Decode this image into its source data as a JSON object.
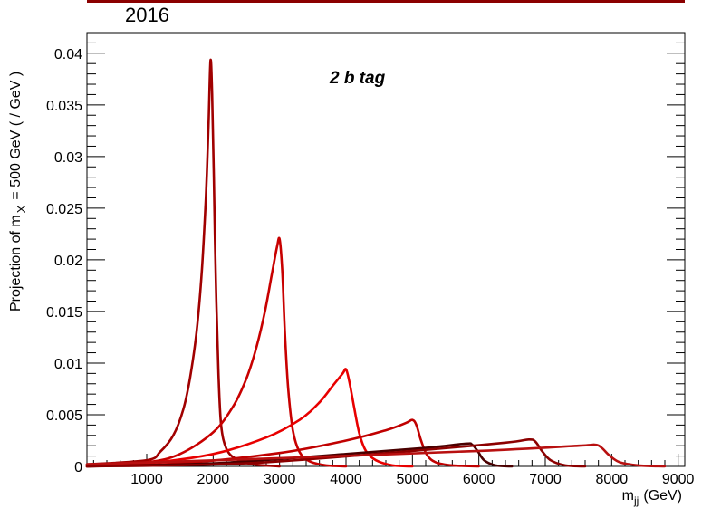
{
  "chart_data": {
    "type": "line",
    "year_label": "2016",
    "annotation": "2 b tag",
    "ylabel": "Projection of m",
    "ylabel_sub": "X",
    "ylabel_tail": "= 500 GeV ( / GeV )",
    "xlabel": "m",
    "xlabel_sub": "jj",
    "xlabel_tail": "(GeV)",
    "xlim": [
      100,
      9100
    ],
    "ylim": [
      0,
      0.042
    ],
    "x_ticks": [
      1000,
      2000,
      3000,
      4000,
      5000,
      6000,
      7000,
      8000,
      9000
    ],
    "x_tick_labels": [
      "1000",
      "2000",
      "3000",
      "4000",
      "5000",
      "6000",
      "7000",
      "8000",
      "9000"
    ],
    "y_ticks": [
      0,
      0.005,
      0.01,
      0.015,
      0.02,
      0.025,
      0.03,
      0.035,
      0.04
    ],
    "y_tick_labels": [
      "0",
      "0.005",
      "0.01",
      "0.015",
      "0.02",
      "0.025",
      "0.03",
      "0.035",
      "0.04"
    ],
    "grid": false,
    "series": [
      {
        "color": "#a00000",
        "points": [
          [
            100,
            0.0002
          ],
          [
            1000,
            0.0006
          ],
          [
            1200,
            0.0014
          ],
          [
            1400,
            0.003
          ],
          [
            1550,
            0.0055
          ],
          [
            1650,
            0.0085
          ],
          [
            1750,
            0.013
          ],
          [
            1830,
            0.019
          ],
          [
            1890,
            0.026
          ],
          [
            1930,
            0.033
          ],
          [
            1960,
            0.0393
          ],
          [
            1985,
            0.036
          ],
          [
            2010,
            0.028
          ],
          [
            2040,
            0.018
          ],
          [
            2080,
            0.009
          ],
          [
            2120,
            0.004
          ],
          [
            2200,
            0.0017
          ],
          [
            2350,
            0.0007
          ],
          [
            2600,
            0.0002
          ],
          [
            3000,
            0.0
          ]
        ]
      },
      {
        "color": "#c80000",
        "points": [
          [
            100,
            0.0001
          ],
          [
            1000,
            0.0004
          ],
          [
            1500,
            0.0012
          ],
          [
            2000,
            0.0033
          ],
          [
            2300,
            0.0058
          ],
          [
            2500,
            0.0085
          ],
          [
            2650,
            0.0115
          ],
          [
            2780,
            0.015
          ],
          [
            2880,
            0.0185
          ],
          [
            2960,
            0.0212
          ],
          [
            3000,
            0.022
          ],
          [
            3040,
            0.019
          ],
          [
            3080,
            0.013
          ],
          [
            3130,
            0.0075
          ],
          [
            3200,
            0.0035
          ],
          [
            3300,
            0.0014
          ],
          [
            3450,
            0.0005
          ],
          [
            3700,
            0.0001
          ],
          [
            4000,
            0.0
          ]
        ]
      },
      {
        "color": "#e80000",
        "points": [
          [
            100,
            0.0
          ],
          [
            1000,
            0.0003
          ],
          [
            2000,
            0.0012
          ],
          [
            2800,
            0.0028
          ],
          [
            3300,
            0.0045
          ],
          [
            3600,
            0.0062
          ],
          [
            3800,
            0.0078
          ],
          [
            3950,
            0.009
          ],
          [
            4000,
            0.0094
          ],
          [
            4050,
            0.0082
          ],
          [
            4120,
            0.0058
          ],
          [
            4200,
            0.0032
          ],
          [
            4300,
            0.0015
          ],
          [
            4450,
            0.0006
          ],
          [
            4700,
            0.0001
          ],
          [
            5000,
            0.0
          ]
        ]
      },
      {
        "color": "#c00000",
        "points": [
          [
            100,
            0.0
          ],
          [
            1500,
            0.0003
          ],
          [
            3000,
            0.0013
          ],
          [
            4000,
            0.0025
          ],
          [
            4600,
            0.0035
          ],
          [
            4900,
            0.0042
          ],
          [
            5000,
            0.0045
          ],
          [
            5060,
            0.004
          ],
          [
            5130,
            0.0025
          ],
          [
            5220,
            0.0011
          ],
          [
            5350,
            0.0004
          ],
          [
            5600,
            0.0001
          ],
          [
            6000,
            0.0
          ]
        ]
      },
      {
        "color": "#4a0000",
        "points": [
          [
            100,
            0.0
          ],
          [
            2000,
            0.0003
          ],
          [
            4000,
            0.0012
          ],
          [
            5200,
            0.0018
          ],
          [
            5800,
            0.0022
          ],
          [
            5900,
            0.0021
          ],
          [
            5980,
            0.0015
          ],
          [
            6080,
            0.0006
          ],
          [
            6250,
            0.0001
          ],
          [
            6500,
            0.0
          ]
        ]
      },
      {
        "color": "#8c0000",
        "points": [
          [
            100,
            0.0
          ],
          [
            2500,
            0.0003
          ],
          [
            5000,
            0.0015
          ],
          [
            6400,
            0.0023
          ],
          [
            6750,
            0.0026
          ],
          [
            6850,
            0.0024
          ],
          [
            6950,
            0.0015
          ],
          [
            7080,
            0.0006
          ],
          [
            7300,
            0.0001
          ],
          [
            7600,
            0.0
          ]
        ]
      },
      {
        "color": "#b81010",
        "points": [
          [
            100,
            0.0002
          ],
          [
            3000,
            0.0008
          ],
          [
            6000,
            0.0015
          ],
          [
            7500,
            0.002
          ],
          [
            7750,
            0.0021
          ],
          [
            7850,
            0.0018
          ],
          [
            7960,
            0.0011
          ],
          [
            8120,
            0.0004
          ],
          [
            8400,
            0.0001
          ],
          [
            8800,
            0.0
          ]
        ]
      }
    ]
  }
}
